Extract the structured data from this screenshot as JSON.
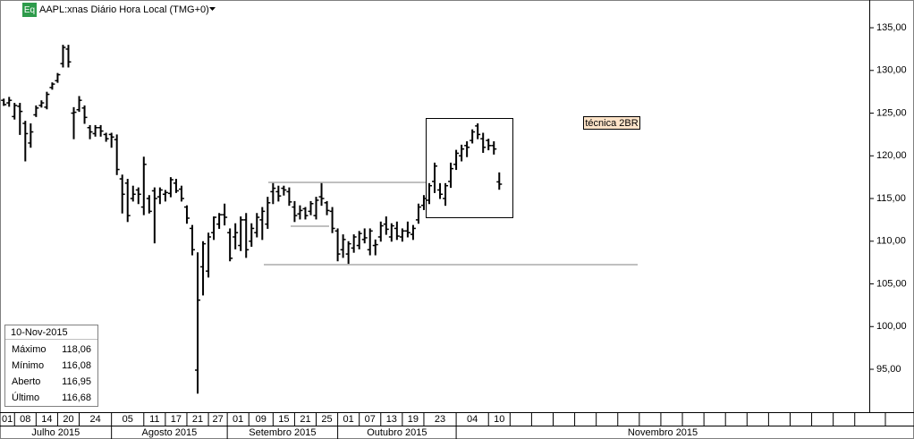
{
  "header": {
    "icon": "Eq",
    "title": "AAPL:xnas Diário Hora Local (TMG+0)"
  },
  "annotation": "técnica 2BR",
  "info": {
    "date": "10-Nov-2015",
    "rows": [
      {
        "label": "Máximo",
        "value": "118,06"
      },
      {
        "label": "Mínimo",
        "value": "116,08"
      },
      {
        "label": "Aberto",
        "value": "116,95"
      },
      {
        "label": "Último",
        "value": "116,68"
      }
    ]
  },
  "chart_data": {
    "type": "ohlc",
    "color": "#000000",
    "categories": [
      "01",
      null,
      null,
      null,
      "08",
      null,
      null,
      null,
      "14",
      null,
      null,
      null,
      "20",
      null,
      null,
      null,
      "24",
      null,
      null,
      null,
      null,
      null,
      null,
      null,
      "05",
      null,
      null,
      null,
      "11",
      null,
      null,
      null,
      "17",
      null,
      null,
      null,
      "21",
      null,
      null,
      null,
      "27",
      null,
      null,
      "01",
      null,
      null,
      null,
      null,
      "09",
      null,
      null,
      null,
      "15",
      null,
      null,
      null,
      "21",
      null,
      null,
      null,
      "25",
      null,
      null,
      null,
      "01",
      null,
      null,
      null,
      "07",
      null,
      null,
      null,
      "13",
      null,
      null,
      null,
      "19",
      null,
      null,
      null,
      "23",
      null,
      null,
      null,
      null,
      null,
      null,
      null,
      "04",
      null,
      null,
      null,
      "10"
    ],
    "months": [
      "Julho 2015",
      "Agosto 2015",
      "Setembro 2015",
      "Outubro 2015",
      "Novembro 2015"
    ],
    "high": [
      126.7,
      126.9,
      126.2,
      126.2,
      124.1,
      123.8,
      125.9,
      126.5,
      127.5,
      128.6,
      129.7,
      133.0,
      133.0,
      125.7,
      127.0,
      125.9,
      123.6,
      123.6,
      123.6,
      122.7,
      122.7,
      122.5,
      117.8,
      117.3,
      116.5,
      116.3,
      119.9,
      115.4,
      116.3,
      116.3,
      116.0,
      117.5,
      117.3,
      116.5,
      114.2,
      111.9,
      108.7,
      110.0,
      111.0,
      112.9,
      113.3,
      114.4,
      111.5,
      112.1,
      112.9,
      113.3,
      112.1,
      113.3,
      114.0,
      115.2,
      116.8,
      116.5,
      116.5,
      116.3,
      114.7,
      114.2,
      114.0,
      114.7,
      115.2,
      116.8,
      114.7,
      114.0,
      111.5,
      110.8,
      110.0,
      110.8,
      111.2,
      111.5,
      111.5,
      110.2,
      112.3,
      112.9,
      112.1,
      112.3,
      111.5,
      112.3,
      111.9,
      114.4,
      115.4,
      116.8,
      119.2,
      116.8,
      116.8,
      119.2,
      120.7,
      121.3,
      121.7,
      123.1,
      123.8,
      122.7,
      122.0,
      121.7,
      118.06
    ],
    "low": [
      125.9,
      125.8,
      124.3,
      122.5,
      119.4,
      121.0,
      124.6,
      125.7,
      125.5,
      127.8,
      128.6,
      130.4,
      130.4,
      122.0,
      125.2,
      123.8,
      122.0,
      122.3,
      122.3,
      121.7,
      121.0,
      117.8,
      113.3,
      112.3,
      114.7,
      114.4,
      113.1,
      113.3,
      109.8,
      114.4,
      114.7,
      115.2,
      115.7,
      114.7,
      112.1,
      108.4,
      92.2,
      103.7,
      105.8,
      110.2,
      111.5,
      111.9,
      107.7,
      109.1,
      108.9,
      108.1,
      109.4,
      110.5,
      110.2,
      111.5,
      114.4,
      114.7,
      115.4,
      114.2,
      112.3,
      112.6,
      112.6,
      113.1,
      112.6,
      114.2,
      113.1,
      111.0,
      107.7,
      108.1,
      107.4,
      108.7,
      109.1,
      109.8,
      108.4,
      108.4,
      110.0,
      110.8,
      110.0,
      110.2,
      110.0,
      110.5,
      110.2,
      112.1,
      113.7,
      114.4,
      115.7,
      115.0,
      114.2,
      116.3,
      118.4,
      119.4,
      119.9,
      121.5,
      122.0,
      120.4,
      120.7,
      120.2,
      116.08
    ],
    "open": [
      126.5,
      126.2,
      124.6,
      125.8,
      123.8,
      121.5,
      124.8,
      125.9,
      125.7,
      128.0,
      128.8,
      130.8,
      132.5,
      125.0,
      125.4,
      125.6,
      123.3,
      122.6,
      123.3,
      122.5,
      122.5,
      121.9,
      117.3,
      116.8,
      115.0,
      116.0,
      114.0,
      115.0,
      115.9,
      115.2,
      115.5,
      115.6,
      116.8,
      116.1,
      114.0,
      111.5,
      94.9,
      107.0,
      106.5,
      111.0,
      112.0,
      113.1,
      111.0,
      110.5,
      109.5,
      112.5,
      110.0,
      111.0,
      112.5,
      112.0,
      115.8,
      115.8,
      116.2,
      115.8,
      114.0,
      113.2,
      113.8,
      113.5,
      113.0,
      115.2,
      114.5,
      113.5,
      111.2,
      109.0,
      108.5,
      109.2,
      109.5,
      110.2,
      109.0,
      109.5,
      110.5,
      112.0,
      110.5,
      111.5,
      110.5,
      111.2,
      110.8,
      112.5,
      114.2,
      114.8,
      117.0,
      116.0,
      115.0,
      117.0,
      119.0,
      120.0,
      121.2,
      121.8,
      123.5,
      122.0,
      121.8,
      121.2,
      116.95
    ],
    "close": [
      126.0,
      126.5,
      125.9,
      125.2,
      122.6,
      122.8,
      125.6,
      126.2,
      127.2,
      128.4,
      129.5,
      132.7,
      131.0,
      125.1,
      126.5,
      124.5,
      122.8,
      123.3,
      122.9,
      122.0,
      122.2,
      118.4,
      115.5,
      113.0,
      115.5,
      115.5,
      119.0,
      113.5,
      115.0,
      116.0,
      115.7,
      117.2,
      115.9,
      115.0,
      112.7,
      109.0,
      103.1,
      109.7,
      110.5,
      112.8,
      113.1,
      112.8,
      108.0,
      111.0,
      112.5,
      109.0,
      111.5,
      112.8,
      113.5,
      114.5,
      116.2,
      115.3,
      116.0,
      114.6,
      113.0,
      113.6,
      113.0,
      114.4,
      114.8,
      115.0,
      113.6,
      111.5,
      108.5,
      110.2,
      109.7,
      110.5,
      110.9,
      110.4,
      111.2,
      109.6,
      111.8,
      111.4,
      111.8,
      110.6,
      111.2,
      111.0,
      111.5,
      114.0,
      115.0,
      116.5,
      118.8,
      115.5,
      116.5,
      118.5,
      120.3,
      120.8,
      121.0,
      122.8,
      122.5,
      121.0,
      121.2,
      120.8,
      116.68
    ],
    "xlim": [
      -0.7,
      160.7
    ],
    "ylim": [
      90.08,
      138.25
    ],
    "yticks": [
      {
        "value": 95,
        "label": "95,00"
      },
      {
        "value": 100,
        "label": "100,00"
      },
      {
        "value": 105,
        "label": "105,00"
      },
      {
        "value": 110,
        "label": "110,00"
      },
      {
        "value": 115,
        "label": "115,00"
      },
      {
        "value": 120,
        "label": "120,00"
      },
      {
        "value": 125,
        "label": "125,00"
      },
      {
        "value": 130,
        "label": "130,00"
      },
      {
        "value": 135,
        "label": "135,00"
      }
    ]
  }
}
